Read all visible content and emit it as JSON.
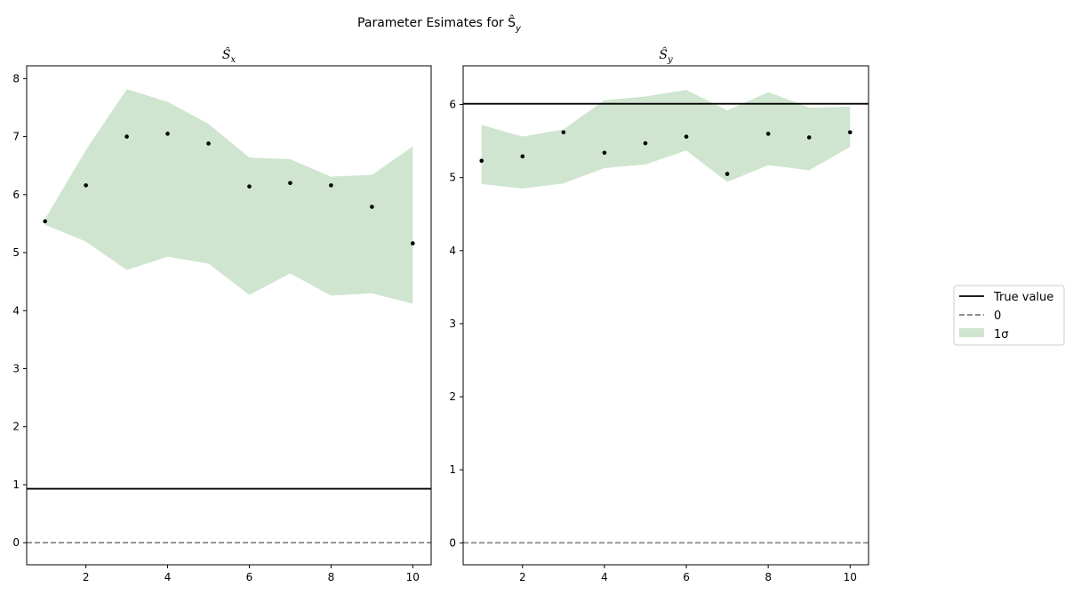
{
  "figure": {
    "suptitle": "Parameter Esimates for Ŝ",
    "suptitle_subscript": "y"
  },
  "legend": {
    "placement": "right",
    "entries": [
      {
        "label": "True value",
        "style": "solid",
        "color": "#000000"
      },
      {
        "label": "0",
        "style": "dashed",
        "color": "#7f7f7f"
      },
      {
        "label": "1σ",
        "style": "fill",
        "color": "#cfe5cf"
      }
    ]
  },
  "colors": {
    "band": "#cfe5cf",
    "points": "#000000",
    "true_line": "#000000",
    "zero_line": "#7f7f7f"
  },
  "chart_data": [
    {
      "type": "scatter",
      "title": "Ŝ",
      "title_subscript": "x",
      "xlim": [
        0.55,
        10.45
      ],
      "ylim": [
        -0.38,
        8.22
      ],
      "xticks": [
        2,
        4,
        6,
        8,
        10
      ],
      "yticks": [
        0,
        1,
        2,
        3,
        4,
        5,
        6,
        7,
        8
      ],
      "x": [
        1,
        2,
        3,
        4,
        5,
        6,
        7,
        8,
        9,
        10
      ],
      "estimates": [
        5.54,
        6.16,
        7.0,
        7.05,
        6.88,
        6.14,
        6.2,
        6.16,
        5.79,
        5.16
      ],
      "band_upper": [
        5.58,
        6.77,
        7.82,
        7.6,
        7.22,
        6.64,
        6.61,
        6.31,
        6.34,
        6.83
      ],
      "band_lower": [
        5.48,
        5.19,
        4.7,
        4.93,
        4.81,
        4.27,
        4.64,
        4.26,
        4.3,
        4.12
      ],
      "true_value": 0.93,
      "zero_value": 0
    },
    {
      "type": "scatter",
      "title": "Ŝ",
      "title_subscript": "y",
      "xlim": [
        0.55,
        10.45
      ],
      "ylim": [
        -0.3,
        6.53
      ],
      "xticks": [
        2,
        4,
        6,
        8,
        10
      ],
      "yticks": [
        0,
        1,
        2,
        3,
        4,
        5,
        6
      ],
      "x": [
        1,
        2,
        3,
        4,
        5,
        6,
        7,
        8,
        9,
        10
      ],
      "estimates": [
        5.23,
        5.29,
        5.62,
        5.34,
        5.47,
        5.56,
        5.05,
        5.6,
        5.55,
        5.62
      ],
      "band_upper": [
        5.72,
        5.56,
        5.66,
        6.06,
        6.11,
        6.2,
        5.92,
        6.17,
        5.96,
        5.97
      ],
      "band_lower": [
        4.91,
        4.85,
        4.92,
        5.13,
        5.18,
        5.37,
        4.94,
        5.17,
        5.1,
        5.42
      ],
      "true_value": 6.01,
      "zero_value": 0
    }
  ]
}
